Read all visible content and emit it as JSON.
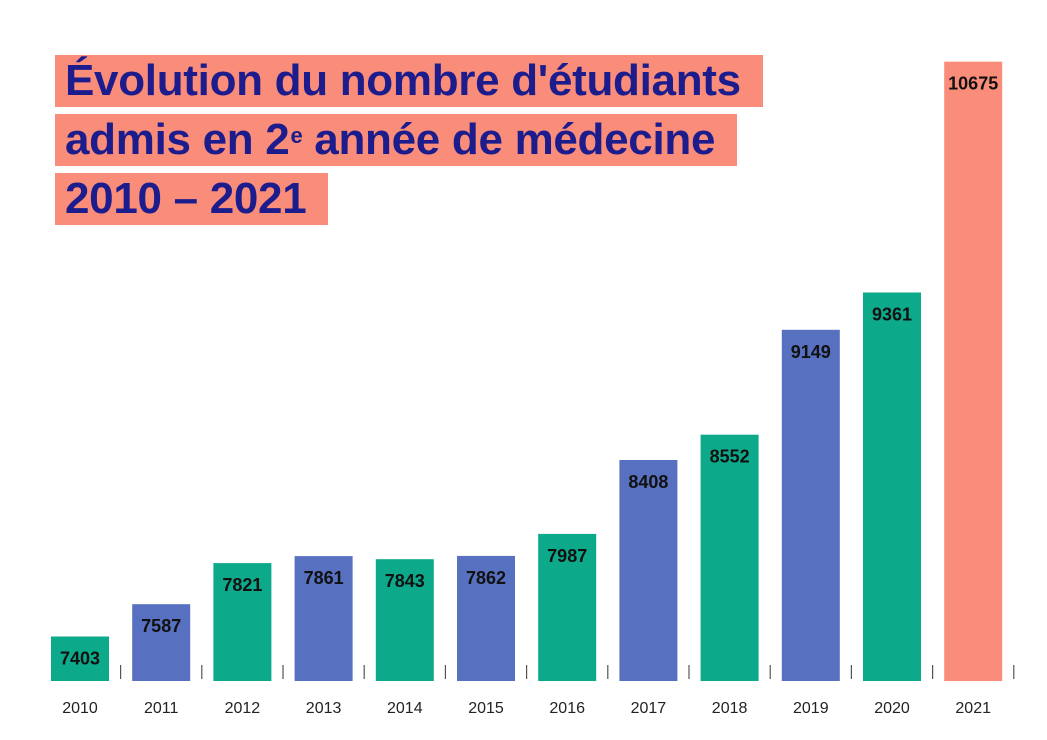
{
  "title": {
    "line1": "Évolution du nombre d'étudiants",
    "line2_prefix": "admis en 2",
    "line2_sup": "e",
    "line2_suffix": " année de médecine",
    "line3": "2010 – 2021"
  },
  "colors": {
    "green": "#0ca98a",
    "blue": "#5770c0",
    "salmon": "#fa8c7a",
    "title_text": "#1c1c8c"
  },
  "chart_data": {
    "type": "bar",
    "title": "Évolution du nombre d'étudiants admis en 2e année de médecine 2010 – 2021",
    "xlabel": "",
    "ylabel": "",
    "categories": [
      "2010",
      "2011",
      "2012",
      "2013",
      "2014",
      "2015",
      "2016",
      "2017",
      "2018",
      "2019",
      "2020",
      "2021"
    ],
    "values": [
      7403,
      7587,
      7821,
      7861,
      7843,
      7862,
      7987,
      8408,
      8552,
      9149,
      9361,
      10675
    ],
    "labels": [
      "7403",
      "7587",
      "7821",
      "7861",
      "7843",
      "7862",
      "7987",
      "8408",
      "8552",
      "9149",
      "9361",
      "10675"
    ],
    "bar_colors": [
      "green",
      "blue",
      "green",
      "blue",
      "green",
      "blue",
      "green",
      "blue",
      "green",
      "blue",
      "green",
      "salmon"
    ],
    "ylim": [
      7150,
      10730
    ],
    "grid": false,
    "legend": "none"
  }
}
